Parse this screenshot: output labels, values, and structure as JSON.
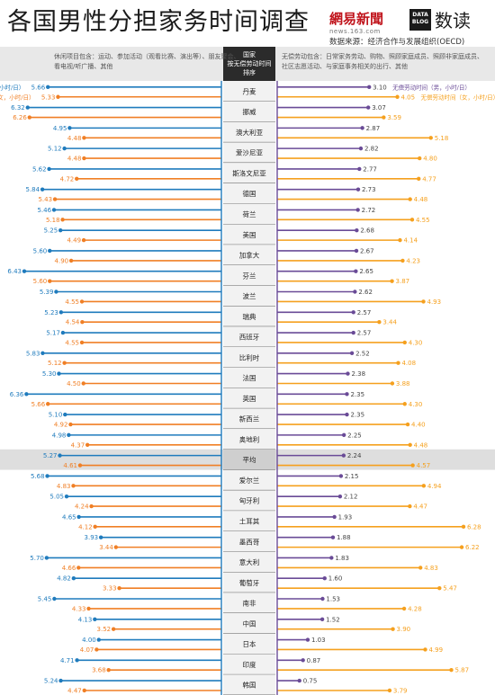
{
  "header": {
    "title": "各国男性分担家务时间调查",
    "brand_logo": "網易新聞",
    "brand_sub": "news.163.com",
    "data_box": [
      "DATA",
      "BLOG"
    ],
    "brand_name": "数读",
    "source": "数据来源：经济合作与发展组织(OECD)"
  },
  "legend_text": {
    "left_note": [
      "休闲项目包含：运动、参加活动（观看比赛、演出等）、朋友聚会、",
      "看电视/听广播、其他"
    ],
    "center_header": [
      "国家",
      "按无偿劳动时间",
      "排序"
    ],
    "right_note": [
      "无偿劳动包含：日常家务劳动、购物、照顾家庭成员、照顾非家庭成员、",
      "社区志愿活动、与家庭事务相关的出行、其他"
    ]
  },
  "colors": {
    "male": "#1f7bbd",
    "female": "#f07f25",
    "male_unpaid": "#6a4b97",
    "female_unpaid": "#f5a01e",
    "center_header_bg": "#2b2b2b",
    "highlight_row": "#dedede"
  },
  "chart_data": {
    "type": "bar",
    "title": "各国男性分担家务时间调查",
    "value_unit": "小时/日",
    "leisure_series": [
      {
        "name": "休闲时间（男，小时/日）",
        "color": "#1f7bbd"
      },
      {
        "name": "休闲时间（女，小时/日）",
        "color": "#f07f25"
      }
    ],
    "unpaid_series": [
      {
        "name": "无偿劳动时间（男，小时/日）",
        "color": "#6a4b97"
      },
      {
        "name": "无偿劳动时间（女，小时/日）",
        "color": "#f5a01e"
      }
    ],
    "highlight": "平均",
    "countries": [
      {
        "name": "丹麦",
        "leisure_m": 5.66,
        "leisure_f": 5.33,
        "unpaid_m": 3.1,
        "unpaid_f": 4.05
      },
      {
        "name": "挪威",
        "leisure_m": 6.32,
        "leisure_f": 6.26,
        "unpaid_m": 3.07,
        "unpaid_f": 3.59
      },
      {
        "name": "澳大利亚",
        "leisure_m": 4.95,
        "leisure_f": 4.48,
        "unpaid_m": 2.87,
        "unpaid_f": 5.18
      },
      {
        "name": "爱沙尼亚",
        "leisure_m": 5.12,
        "leisure_f": 4.48,
        "unpaid_m": 2.82,
        "unpaid_f": 4.8
      },
      {
        "name": "斯洛文尼亚",
        "leisure_m": 5.62,
        "leisure_f": 4.72,
        "unpaid_m": 2.77,
        "unpaid_f": 4.77
      },
      {
        "name": "德国",
        "leisure_m": 5.84,
        "leisure_f": 5.43,
        "unpaid_m": 2.73,
        "unpaid_f": 4.48
      },
      {
        "name": "荷兰",
        "leisure_m": 5.46,
        "leisure_f": 5.18,
        "unpaid_m": 2.72,
        "unpaid_f": 4.55
      },
      {
        "name": "美国",
        "leisure_m": 5.25,
        "leisure_f": 4.49,
        "unpaid_m": 2.68,
        "unpaid_f": 4.14
      },
      {
        "name": "加拿大",
        "leisure_m": 5.6,
        "leisure_f": 4.9,
        "unpaid_m": 2.67,
        "unpaid_f": 4.23
      },
      {
        "name": "芬兰",
        "leisure_m": 6.43,
        "leisure_f": 5.6,
        "unpaid_m": 2.65,
        "unpaid_f": 3.87
      },
      {
        "name": "波兰",
        "leisure_m": 5.39,
        "leisure_f": 4.55,
        "unpaid_m": 2.62,
        "unpaid_f": 4.93
      },
      {
        "name": "瑞典",
        "leisure_m": 5.23,
        "leisure_f": 4.54,
        "unpaid_m": 2.57,
        "unpaid_f": 3.44
      },
      {
        "name": "西班牙",
        "leisure_m": 5.17,
        "leisure_f": 4.55,
        "unpaid_m": 2.57,
        "unpaid_f": 4.3
      },
      {
        "name": "比利时",
        "leisure_m": 5.83,
        "leisure_f": 5.12,
        "unpaid_m": 2.52,
        "unpaid_f": 4.08
      },
      {
        "name": "法国",
        "leisure_m": 5.3,
        "leisure_f": 4.5,
        "unpaid_m": 2.38,
        "unpaid_f": 3.88
      },
      {
        "name": "英国",
        "leisure_m": 6.36,
        "leisure_f": 5.66,
        "unpaid_m": 2.35,
        "unpaid_f": 4.3
      },
      {
        "name": "新西兰",
        "leisure_m": 5.1,
        "leisure_f": 4.92,
        "unpaid_m": 2.35,
        "unpaid_f": 4.4
      },
      {
        "name": "奥地利",
        "leisure_m": 4.98,
        "leisure_f": 4.37,
        "unpaid_m": 2.25,
        "unpaid_f": 4.48
      },
      {
        "name": "平均",
        "leisure_m": 5.27,
        "leisure_f": 4.61,
        "unpaid_m": 2.24,
        "unpaid_f": 4.57
      },
      {
        "name": "爱尔兰",
        "leisure_m": 5.68,
        "leisure_f": 4.83,
        "unpaid_m": 2.15,
        "unpaid_f": 4.94
      },
      {
        "name": "匈牙利",
        "leisure_m": 5.05,
        "leisure_f": 4.24,
        "unpaid_m": 2.12,
        "unpaid_f": 4.47
      },
      {
        "name": "土耳其",
        "leisure_m": 4.65,
        "leisure_f": 4.12,
        "unpaid_m": 1.93,
        "unpaid_f": 6.28
      },
      {
        "name": "墨西哥",
        "leisure_m": 3.93,
        "leisure_f": 3.44,
        "unpaid_m": 1.88,
        "unpaid_f": 6.22
      },
      {
        "name": "意大利",
        "leisure_m": 5.7,
        "leisure_f": 4.66,
        "unpaid_m": 1.83,
        "unpaid_f": 4.83
      },
      {
        "name": "葡萄牙",
        "leisure_m": 4.82,
        "leisure_f": 3.33,
        "unpaid_m": 1.6,
        "unpaid_f": 5.47
      },
      {
        "name": "南非",
        "leisure_m": 5.45,
        "leisure_f": 4.33,
        "unpaid_m": 1.53,
        "unpaid_f": 4.28
      },
      {
        "name": "中国",
        "leisure_m": 4.13,
        "leisure_f": 3.52,
        "unpaid_m": 1.52,
        "unpaid_f": 3.9
      },
      {
        "name": "日本",
        "leisure_m": 4.0,
        "leisure_f": 4.07,
        "unpaid_m": 1.03,
        "unpaid_f": 4.99
      },
      {
        "name": "印度",
        "leisure_m": 4.71,
        "leisure_f": 3.68,
        "unpaid_m": 0.87,
        "unpaid_f": 5.87
      },
      {
        "name": "韩国",
        "leisure_m": 5.24,
        "leisure_f": 4.47,
        "unpaid_m": 0.75,
        "unpaid_f": 3.79
      }
    ]
  }
}
